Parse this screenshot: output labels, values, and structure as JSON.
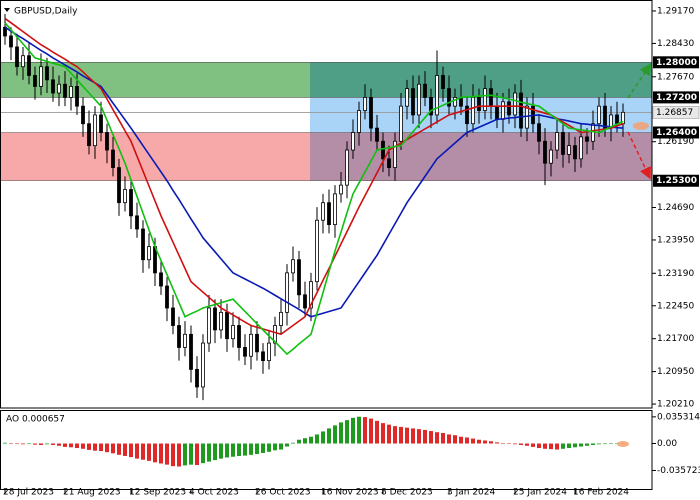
{
  "chart_data": [
    {
      "type": "candlestick",
      "title": "GBPUSD,Daily",
      "categories": [
        "28 Jul 2023",
        null,
        null,
        null,
        null,
        null,
        null,
        null,
        null,
        null,
        "21 Aug 2023",
        null,
        null,
        null,
        null,
        null,
        null,
        null,
        null,
        null,
        null,
        "12 Sep 2023",
        null,
        null,
        null,
        null,
        null,
        null,
        null,
        null,
        null,
        "4 Oct 2023",
        null,
        null,
        null,
        null,
        null,
        null,
        null,
        null,
        null,
        null,
        "26 Oct 2023",
        null,
        null,
        null,
        null,
        null,
        null,
        null,
        null,
        null,
        null,
        "16 Nov 2023",
        null,
        null,
        null,
        null,
        null,
        null,
        null,
        null,
        null,
        "8 Dec 2023",
        null,
        null,
        null,
        null,
        null,
        null,
        null,
        null,
        null,
        null,
        "3 Jan 2024",
        null,
        null,
        null,
        null,
        null,
        null,
        null,
        null,
        null,
        null,
        "25 Jan 2024",
        null,
        null,
        null,
        null,
        null,
        null,
        null,
        null,
        null,
        "16 Feb 2024",
        null,
        null,
        null,
        null,
        null,
        null,
        null,
        null
      ],
      "open": [
        1.288,
        1.286,
        1.2835,
        1.279,
        1.2815,
        1.277,
        1.2745,
        1.279,
        1.276,
        1.273,
        1.275,
        1.272,
        1.2745,
        1.27,
        1.266,
        1.261,
        1.268,
        1.264,
        1.26,
        1.256,
        1.248,
        1.251,
        1.245,
        1.242,
        1.235,
        1.238,
        1.232,
        1.229,
        1.224,
        1.22,
        1.215,
        1.218,
        1.21,
        1.206,
        1.216,
        1.224,
        1.219,
        1.223,
        1.217,
        1.22,
        1.215,
        1.213,
        1.218,
        1.214,
        1.212,
        1.216,
        1.22,
        1.223,
        1.232,
        1.235,
        1.227,
        1.224,
        1.23,
        1.244,
        1.248,
        1.243,
        1.25,
        1.252,
        1.26,
        1.264,
        1.269,
        1.272,
        1.265,
        1.262,
        1.258,
        1.256,
        1.262,
        1.27,
        1.274,
        1.268,
        1.275,
        1.272,
        1.268,
        1.277,
        1.274,
        1.27,
        1.272,
        1.27,
        1.266,
        1.272,
        1.269,
        1.274,
        1.27,
        1.267,
        1.271,
        1.268,
        1.273,
        1.265,
        1.27,
        1.266,
        1.262,
        1.257,
        1.26,
        1.264,
        1.259,
        1.261,
        1.258,
        1.263,
        1.262,
        1.266,
        1.27,
        1.265,
        1.268,
        1.266
      ],
      "high": [
        1.291,
        1.288,
        1.2865,
        1.2835,
        1.2845,
        1.279,
        1.282,
        1.281,
        1.279,
        1.277,
        1.278,
        1.2765,
        1.2775,
        1.272,
        1.269,
        1.27,
        1.271,
        1.266,
        1.263,
        1.258,
        1.254,
        1.253,
        1.248,
        1.244,
        1.241,
        1.24,
        1.235,
        1.231,
        1.227,
        1.222,
        1.221,
        1.22,
        1.213,
        1.218,
        1.227,
        1.226,
        1.226,
        1.225,
        1.223,
        1.222,
        1.218,
        1.22,
        1.221,
        1.216,
        1.219,
        1.222,
        1.226,
        1.234,
        1.238,
        1.237,
        1.23,
        1.232,
        1.247,
        1.25,
        1.251,
        1.252,
        1.255,
        1.262,
        1.267,
        1.271,
        1.275,
        1.274,
        1.268,
        1.264,
        1.261,
        1.264,
        1.273,
        1.276,
        1.277,
        1.277,
        1.278,
        1.274,
        1.2827,
        1.279,
        1.277,
        1.274,
        1.275,
        1.272,
        1.275,
        1.274,
        1.277,
        1.276,
        1.273,
        1.273,
        1.274,
        1.275,
        1.276,
        1.272,
        1.273,
        1.268,
        1.265,
        1.262,
        1.267,
        1.266,
        1.264,
        1.263,
        1.266,
        1.265,
        1.269,
        1.272,
        1.273,
        1.27,
        1.271,
        1.2706
      ],
      "low": [
        1.284,
        1.2805,
        1.277,
        1.276,
        1.275,
        1.2715,
        1.2725,
        1.273,
        1.271,
        1.27,
        1.27,
        1.269,
        1.268,
        1.263,
        1.259,
        1.258,
        1.262,
        1.257,
        1.254,
        1.245,
        1.246,
        1.242,
        1.24,
        1.232,
        1.233,
        1.229,
        1.227,
        1.221,
        1.218,
        1.212,
        1.213,
        1.207,
        1.2035,
        1.203,
        1.214,
        1.216,
        1.217,
        1.214,
        1.215,
        1.212,
        1.211,
        1.21,
        1.212,
        1.209,
        1.21,
        1.213,
        1.218,
        1.22,
        1.23,
        1.224,
        1.222,
        1.221,
        1.228,
        1.241,
        1.241,
        1.24,
        1.248,
        1.249,
        1.258,
        1.261,
        1.267,
        1.262,
        1.26,
        1.255,
        1.254,
        1.253,
        1.26,
        1.267,
        1.266,
        1.265,
        1.27,
        1.265,
        1.266,
        1.271,
        1.268,
        1.267,
        1.268,
        1.263,
        1.264,
        1.266,
        1.267,
        1.267,
        1.265,
        1.264,
        1.266,
        1.265,
        1.263,
        1.262,
        1.264,
        1.259,
        1.252,
        1.254,
        1.258,
        1.256,
        1.257,
        1.255,
        1.256,
        1.259,
        1.26,
        1.263,
        1.263,
        1.262,
        1.264,
        1.263
      ],
      "close": [
        1.286,
        1.2835,
        1.279,
        1.2815,
        1.277,
        1.2745,
        1.279,
        1.276,
        1.273,
        1.275,
        1.272,
        1.2745,
        1.27,
        1.266,
        1.261,
        1.268,
        1.264,
        1.26,
        1.256,
        1.248,
        1.251,
        1.245,
        1.242,
        1.235,
        1.238,
        1.232,
        1.229,
        1.224,
        1.22,
        1.215,
        1.218,
        1.21,
        1.206,
        1.216,
        1.224,
        1.219,
        1.223,
        1.217,
        1.22,
        1.215,
        1.213,
        1.218,
        1.214,
        1.212,
        1.216,
        1.22,
        1.223,
        1.232,
        1.235,
        1.227,
        1.224,
        1.23,
        1.244,
        1.248,
        1.243,
        1.25,
        1.252,
        1.26,
        1.264,
        1.269,
        1.272,
        1.265,
        1.262,
        1.258,
        1.256,
        1.262,
        1.27,
        1.274,
        1.268,
        1.275,
        1.272,
        1.268,
        1.277,
        1.274,
        1.27,
        1.272,
        1.27,
        1.266,
        1.272,
        1.269,
        1.274,
        1.27,
        1.267,
        1.271,
        1.268,
        1.273,
        1.265,
        1.27,
        1.266,
        1.262,
        1.257,
        1.26,
        1.264,
        1.259,
        1.261,
        1.258,
        1.263,
        1.262,
        1.266,
        1.27,
        1.265,
        1.268,
        1.266,
        1.2686
      ],
      "candle_color": "#000000",
      "series": [
        {
          "color": "#0a1ab4",
          "values": [
            1.288,
            1.2871,
            1.2862,
            1.2854,
            1.2845,
            1.2836,
            1.2827,
            1.2819,
            1.281,
            1.2802,
            1.2794,
            1.2786,
            1.2778,
            1.2769,
            1.2761,
            1.2753,
            1.2745,
            1.2726,
            1.2707,
            1.2688,
            1.2669,
            1.265,
            1.263,
            1.261,
            1.259,
            1.257,
            1.255,
            1.253,
            1.2508,
            1.2487,
            1.2465,
            1.2443,
            1.2422,
            1.24,
            1.2384,
            1.2368,
            1.2352,
            1.2336,
            1.232,
            1.2313,
            1.2306,
            1.2299,
            1.2292,
            1.2285,
            1.2277,
            1.2269,
            1.2261,
            1.2253,
            1.2245,
            1.2237,
            1.2228,
            1.222,
            1.2224,
            1.2228,
            1.2232,
            1.2236,
            1.224,
            1.226,
            1.228,
            1.23,
            1.232,
            1.234,
            1.236,
            1.2384,
            1.2408,
            1.2432,
            1.2456,
            1.248,
            1.25,
            1.252,
            1.254,
            1.256,
            1.258,
            1.2592,
            1.2604,
            1.2616,
            1.2628,
            1.264,
            1.2646,
            1.2652,
            1.2658,
            1.2664,
            1.267,
            1.2671,
            1.2673,
            1.2674,
            1.2676,
            1.2677,
            1.2679,
            1.268,
            1.2677,
            1.2674,
            1.2671,
            1.2669,
            1.2666,
            1.2663,
            1.266,
            1.2659,
            1.2657,
            1.2656,
            1.2654,
            1.2653,
            1.2651,
            1.265
          ]
        },
        {
          "color": "#d01010",
          "values": [
            1.29,
            1.289,
            1.288,
            1.287,
            1.286,
            1.285,
            1.284,
            1.2832,
            1.2823,
            1.2815,
            1.2807,
            1.2798,
            1.279,
            1.2778,
            1.2765,
            1.2753,
            1.274,
            1.2716,
            1.2692,
            1.2668,
            1.2644,
            1.262,
            1.2586,
            1.2552,
            1.2518,
            1.2484,
            1.245,
            1.242,
            1.239,
            1.236,
            1.233,
            1.23,
            1.2288,
            1.2276,
            1.2264,
            1.2252,
            1.224,
            1.2232,
            1.2224,
            1.2216,
            1.2208,
            1.22,
            1.2196,
            1.2192,
            1.2188,
            1.2184,
            1.218,
            1.219,
            1.22,
            1.221,
            1.222,
            1.2248,
            1.2275,
            1.2303,
            1.233,
            1.2358,
            1.2386,
            1.2414,
            1.2442,
            1.247,
            1.2496,
            1.2522,
            1.2548,
            1.2574,
            1.26,
            1.2608,
            1.2616,
            1.2624,
            1.2632,
            1.264,
            1.2648,
            1.2656,
            1.2664,
            1.2672,
            1.268,
            1.2684,
            1.2688,
            1.2692,
            1.2696,
            1.27,
            1.27,
            1.27,
            1.27,
            1.27,
            1.27,
            1.27,
            1.27,
            1.2696,
            1.2692,
            1.2688,
            1.2684,
            1.268,
            1.2672,
            1.2664,
            1.2656,
            1.2648,
            1.264,
            1.2642,
            1.2644,
            1.2646,
            1.2648,
            1.265,
            1.2655,
            1.266
          ]
        },
        {
          "color": "#10c010",
          "values": [
            1.289,
            1.2874,
            1.2858,
            1.2842,
            1.2826,
            1.281,
            1.2806,
            1.2802,
            1.2798,
            1.2794,
            1.279,
            1.2775,
            1.276,
            1.2745,
            1.273,
            1.2715,
            1.27,
            1.2668,
            1.2635,
            1.2603,
            1.257,
            1.2532,
            1.2494,
            1.2456,
            1.2418,
            1.238,
            1.2348,
            1.2316,
            1.2284,
            1.2252,
            1.222,
            1.2227,
            1.2233,
            1.224,
            1.2244,
            1.2248,
            1.2252,
            1.2256,
            1.226,
            1.2246,
            1.2232,
            1.2218,
            1.2204,
            1.219,
            1.2176,
            1.2163,
            1.2149,
            1.2135,
            1.2146,
            1.2158,
            1.2169,
            1.218,
            1.2228,
            1.2275,
            1.2323,
            1.237,
            1.2413,
            1.2457,
            1.25,
            1.2525,
            1.255,
            1.2575,
            1.26,
            1.2603,
            1.2605,
            1.2608,
            1.261,
            1.2626,
            1.2642,
            1.2658,
            1.2674,
            1.269,
            1.2696,
            1.2702,
            1.2708,
            1.2714,
            1.272,
            1.2721,
            1.2722,
            1.2723,
            1.2724,
            1.2725,
            1.2722,
            1.2719,
            1.2716,
            1.2713,
            1.2709,
            1.2706,
            1.2703,
            1.27,
            1.269,
            1.268,
            1.267,
            1.266,
            1.265,
            1.2648,
            1.2646,
            1.2644,
            1.2642,
            1.264,
            1.2646,
            1.2653,
            1.2659,
            1.2665
          ]
        }
      ],
      "ylim": [
        1.2012,
        1.2942
      ],
      "yticks": [
        {
          "value": 1.2917,
          "label": "1.29170"
        },
        {
          "value": 1.2843,
          "label": "1.28430"
        },
        {
          "value": 1.2767,
          "label": "1.27670"
        },
        {
          "value": 1.2619,
          "label": "1.26190"
        },
        {
          "value": 1.2469,
          "label": "1.24690"
        },
        {
          "value": 1.2395,
          "label": "1.23950"
        },
        {
          "value": 1.2319,
          "label": "1.23190"
        },
        {
          "value": 1.2245,
          "label": "1.22450"
        },
        {
          "value": 1.217,
          "label": "1.21700"
        },
        {
          "value": 1.2095,
          "label": "1.20950"
        },
        {
          "value": 1.2021,
          "label": "1.20210"
        }
      ],
      "levels": [
        {
          "value": 1.28,
          "label": "1.28000"
        },
        {
          "value": 1.272,
          "label": "1.27200"
        },
        {
          "value": 1.264,
          "label": "1.26400"
        },
        {
          "value": 1.253,
          "label": "1.25300"
        }
      ],
      "zone_colors": [
        [
          "#80c080",
          "#4e9f86"
        ],
        [
          "#ffffff",
          "#a9d4f8"
        ],
        [
          "#f7a9a9",
          "#b48da7"
        ]
      ],
      "current_price": {
        "value": 1.26857,
        "label": "1.26857"
      },
      "grid": false
    },
    {
      "type": "bar",
      "label": "AO 0.000657",
      "values": [
        0.001,
        0.0005,
        -0.0005,
        -0.001,
        -0.0005,
        -0.0015,
        -0.002,
        -0.001,
        -0.002,
        -0.003,
        -0.0045,
        -0.005,
        -0.006,
        -0.007,
        -0.0085,
        -0.0095,
        -0.01,
        -0.0115,
        -0.013,
        -0.015,
        -0.0165,
        -0.018,
        -0.02,
        -0.0215,
        -0.023,
        -0.025,
        -0.0265,
        -0.028,
        -0.03,
        -0.0305,
        -0.029,
        -0.028,
        -0.0285,
        -0.026,
        -0.024,
        -0.022,
        -0.02,
        -0.0185,
        -0.0175,
        -0.0165,
        -0.016,
        -0.015,
        -0.014,
        -0.0125,
        -0.011,
        -0.009,
        -0.008,
        -0.004,
        0.001,
        0.005,
        0.007,
        0.009,
        0.012,
        0.016,
        0.02,
        0.024,
        0.028,
        0.031,
        0.034,
        0.0355,
        0.035,
        0.033,
        0.03,
        0.027,
        0.025,
        0.023,
        0.022,
        0.021,
        0.02,
        0.019,
        0.018,
        0.0165,
        0.015,
        0.014,
        0.012,
        0.011,
        0.009,
        0.008,
        0.0065,
        0.005,
        0.004,
        0.003,
        0.0015,
        0.0005,
        -0.0005,
        -0.001,
        -0.002,
        -0.003,
        -0.0045,
        -0.006,
        -0.007,
        -0.0075,
        -0.008,
        -0.007,
        -0.006,
        -0.005,
        -0.004,
        -0.003,
        -0.002,
        -0.001,
        0.0,
        0.0003,
        0.0005,
        0.000657
      ],
      "up_color": "#1e9a1e",
      "down_color": "#e02828",
      "ylim": [
        -0.0616,
        0.0444
      ],
      "yticks": [
        0.035314,
        {
          "value": 0,
          "label": "0.00"
        },
        -0.035723
      ]
    }
  ]
}
